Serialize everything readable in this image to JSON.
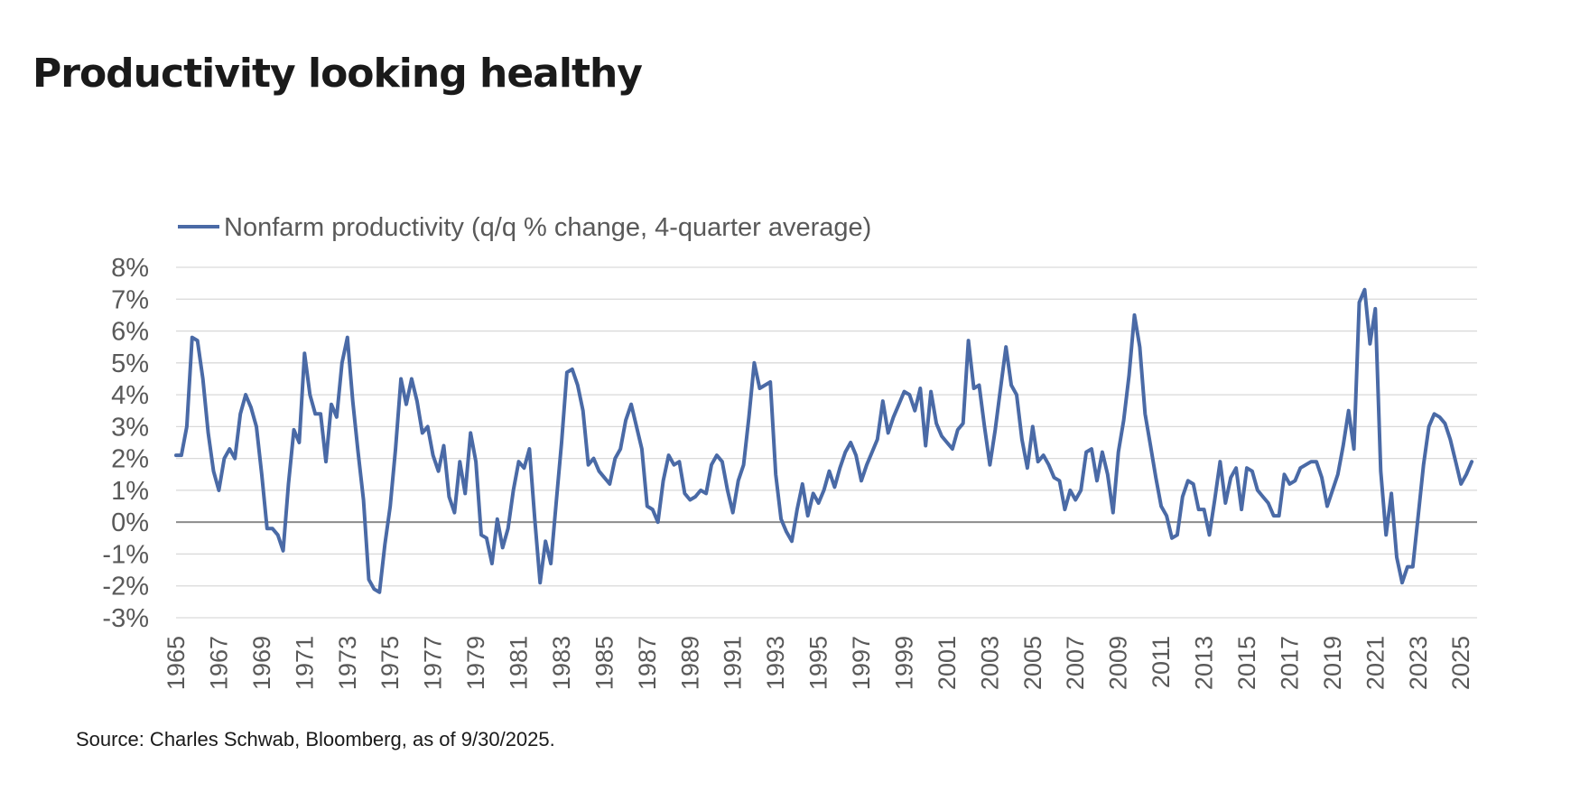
{
  "page": {
    "title": "Productivity looking healthy",
    "source": "Source: Charles Schwab, Bloomberg, as of 9/30/2025."
  },
  "chart_data": {
    "type": "line",
    "title": "",
    "xlabel": "",
    "ylabel": "",
    "legend_position": "top-left",
    "grid": "horizontal",
    "line_color": "#4a6aa6",
    "x_start": 1965.0,
    "x_step": 0.25,
    "xlim": [
      1965,
      2025.75
    ],
    "ylim": [
      -3,
      8
    ],
    "y_ticks": [
      -3,
      -2,
      -1,
      0,
      1,
      2,
      3,
      4,
      5,
      6,
      7,
      8
    ],
    "y_tick_labels": [
      "-3%",
      "-2%",
      "-1%",
      "0%",
      "1%",
      "2%",
      "3%",
      "4%",
      "5%",
      "6%",
      "7%",
      "8%"
    ],
    "x_ticks": [
      1965,
      1967,
      1969,
      1971,
      1973,
      1975,
      1977,
      1979,
      1981,
      1983,
      1985,
      1987,
      1989,
      1991,
      1993,
      1995,
      1997,
      1999,
      2001,
      2003,
      2005,
      2007,
      2009,
      2011,
      2013,
      2015,
      2017,
      2019,
      2021,
      2023,
      2025
    ],
    "x_tick_labels": [
      "1965",
      "1967",
      "1969",
      "1971",
      "1973",
      "1975",
      "1977",
      "1979",
      "1981",
      "1983",
      "1985",
      "1987",
      "1989",
      "1991",
      "1993",
      "1995",
      "1997",
      "1999",
      "2001",
      "2003",
      "2005",
      "2007",
      "2009",
      "2011",
      "2013",
      "2015",
      "2017",
      "2019",
      "2021",
      "2023",
      "2025"
    ],
    "series": [
      {
        "name": "Nonfarm productivity (q/q % change, 4-quarter average)",
        "values": [
          2.1,
          2.1,
          3.0,
          5.8,
          5.7,
          4.5,
          2.8,
          1.6,
          1.0,
          2.0,
          2.3,
          2.0,
          3.4,
          4.0,
          3.6,
          3.0,
          1.5,
          -0.2,
          -0.2,
          -0.4,
          -0.9,
          1.2,
          2.9,
          2.5,
          5.3,
          4.0,
          3.4,
          3.4,
          1.9,
          3.7,
          3.3,
          5.0,
          5.8,
          3.8,
          2.2,
          0.7,
          -1.8,
          -2.1,
          -2.2,
          -0.7,
          0.5,
          2.3,
          4.5,
          3.7,
          4.5,
          3.8,
          2.8,
          3.0,
          2.1,
          1.6,
          2.4,
          0.8,
          0.3,
          1.9,
          0.9,
          2.8,
          1.9,
          -0.4,
          -0.5,
          -1.3,
          0.1,
          -0.8,
          -0.2,
          1.0,
          1.9,
          1.7,
          2.3,
          0.1,
          -1.9,
          -0.6,
          -1.3,
          0.6,
          2.5,
          4.7,
          4.8,
          4.3,
          3.5,
          1.8,
          2.0,
          1.6,
          1.4,
          1.2,
          2.0,
          2.3,
          3.2,
          3.7,
          3.0,
          2.3,
          0.5,
          0.4,
          0.0,
          1.3,
          2.1,
          1.8,
          1.9,
          0.9,
          0.7,
          0.8,
          1.0,
          0.9,
          1.8,
          2.1,
          1.9,
          1.0,
          0.3,
          1.3,
          1.8,
          3.3,
          5.0,
          4.2,
          4.3,
          4.4,
          1.5,
          0.1,
          -0.3,
          -0.6,
          0.4,
          1.2,
          0.2,
          0.9,
          0.6,
          1.0,
          1.6,
          1.1,
          1.7,
          2.2,
          2.5,
          2.1,
          1.3,
          1.8,
          2.2,
          2.6,
          3.8,
          2.8,
          3.3,
          3.7,
          4.1,
          4.0,
          3.5,
          4.2,
          2.4,
          4.1,
          3.1,
          2.7,
          2.5,
          2.3,
          2.9,
          3.1,
          5.7,
          4.2,
          4.3,
          3.0,
          1.8,
          2.9,
          4.2,
          5.5,
          4.3,
          4.0,
          2.6,
          1.7,
          3.0,
          1.9,
          2.1,
          1.8,
          1.4,
          1.3,
          0.4,
          1.0,
          0.7,
          1.0,
          2.2,
          2.3,
          1.3,
          2.2,
          1.5,
          0.3,
          2.2,
          3.2,
          4.6,
          6.5,
          5.5,
          3.4,
          2.4,
          1.4,
          0.5,
          0.2,
          -0.5,
          -0.4,
          0.8,
          1.3,
          1.2,
          0.4,
          0.4,
          -0.4,
          0.7,
          1.9,
          0.6,
          1.4,
          1.7,
          0.4,
          1.7,
          1.6,
          1.0,
          0.8,
          0.6,
          0.2,
          0.2,
          1.5,
          1.2,
          1.3,
          1.7,
          1.8,
          1.9,
          1.9,
          1.4,
          0.5,
          1.0,
          1.5,
          2.4,
          3.5,
          2.3,
          6.9,
          7.3,
          5.6,
          6.7,
          1.6,
          -0.4,
          0.9,
          -1.1,
          -1.9,
          -1.4,
          -1.4,
          0.2,
          1.8,
          3.0,
          3.4,
          3.3,
          3.1,
          2.6,
          1.9,
          1.2,
          1.5,
          1.9
        ]
      }
    ]
  }
}
